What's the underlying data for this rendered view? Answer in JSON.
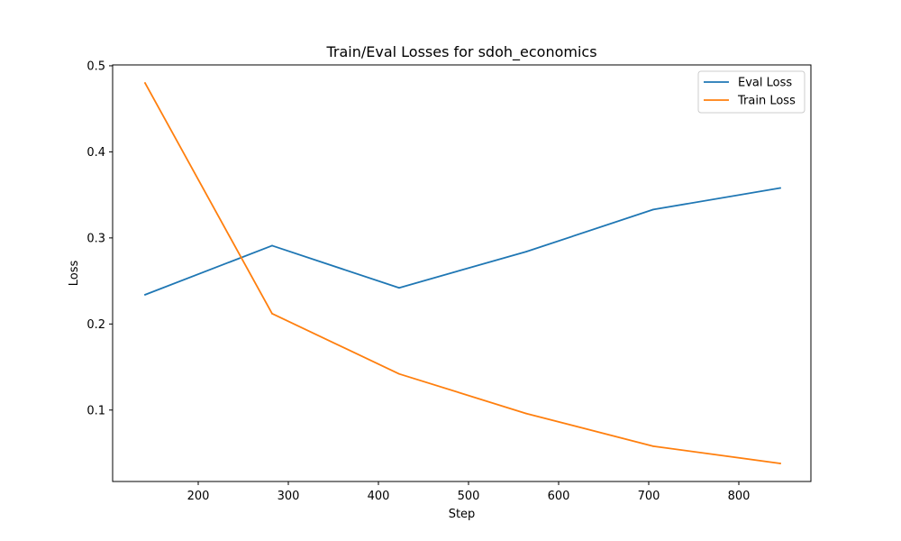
{
  "chart_data": {
    "type": "line",
    "title": "Train/Eval Losses for sdoh_economics",
    "xlabel": "Step",
    "ylabel": "Loss",
    "xlim": [
      105,
      880
    ],
    "ylim": [
      0.017,
      0.501
    ],
    "xticks": [
      200,
      300,
      400,
      500,
      600,
      700,
      800
    ],
    "yticks": [
      0.1,
      0.2,
      0.3,
      0.4,
      0.5
    ],
    "ytick_labels": [
      "0.1",
      "0.2",
      "0.3",
      "0.4",
      "0.5"
    ],
    "grid": false,
    "legend_position": "top-right",
    "x": [
      141,
      282,
      423,
      564,
      705,
      846
    ],
    "series": [
      {
        "name": "Eval Loss",
        "color": "#1f77b4",
        "values": [
          0.234,
          0.291,
          0.242,
          0.284,
          0.333,
          0.358
        ]
      },
      {
        "name": "Train Loss",
        "color": "#ff7f0e",
        "values": [
          0.48,
          0.212,
          0.142,
          0.096,
          0.058,
          0.038
        ]
      }
    ]
  }
}
